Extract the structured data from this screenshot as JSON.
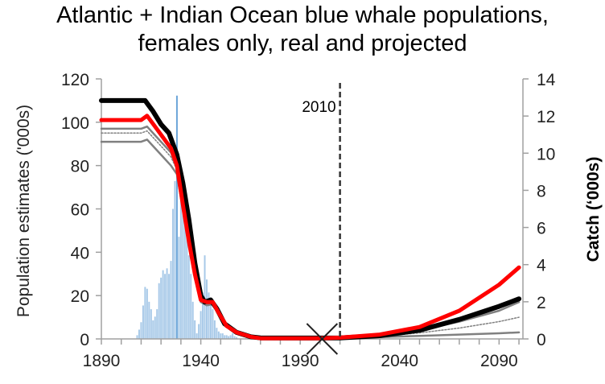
{
  "chart_data": {
    "type": "line",
    "title_lines": [
      "Atlantic + Indian Ocean blue whale populations,",
      "females only, real and projected"
    ],
    "ylabel": "Population estimates ('000s)",
    "y2label": "Catch (‘000s)",
    "xlim": [
      1890,
      2102
    ],
    "ylim": [
      0,
      120
    ],
    "y2lim": [
      0,
      14
    ],
    "xticks": [
      1890,
      1940,
      1990,
      2040,
      2090
    ],
    "yticks": [
      0,
      20,
      40,
      60,
      80,
      100,
      120
    ],
    "y2ticks": [
      0,
      2,
      4,
      6,
      8,
      10,
      12,
      14
    ],
    "grid": false,
    "annotation": {
      "label": "2010",
      "x": 2010,
      "style": "dashed vertical line"
    },
    "marker_x": {
      "x": 2001,
      "y": 0,
      "symbol": "X"
    },
    "colors": {
      "black_series": "#000000",
      "red_series": "#ff0000",
      "gray_series": "#808080",
      "catch_bars": "#9dc3e6",
      "catch_bars_dark": "#5b9bd5"
    },
    "series": [
      {
        "color": "#808080",
        "style": "gray",
        "x": [
          1890,
          1910,
          1913,
          1917,
          1921,
          1925,
          1928,
          1931,
          1934,
          1937,
          1940,
          1943,
          1946,
          1949,
          1953,
          1958,
          1965,
          1970,
          2000,
          2010,
          2030,
          2050,
          2070,
          2090,
          2100
        ],
        "y": [
          97,
          97,
          98,
          94,
          90,
          86,
          79,
          62,
          45,
          30,
          18,
          16,
          16.5,
          12,
          6,
          3,
          1,
          0.4,
          0.3,
          0.5,
          1.5,
          4,
          8,
          13,
          17
        ]
      },
      {
        "color": "#808080",
        "style": "gray-dotted",
        "x": [
          1890,
          1910,
          1913,
          1917,
          1921,
          1925,
          1928,
          1931,
          1934,
          1937,
          1940,
          1943,
          1946,
          1949,
          1953,
          1958,
          1965,
          1970,
          2000,
          2010,
          2030,
          2050,
          2070,
          2090,
          2100
        ],
        "y": [
          95,
          95,
          96,
          92,
          88,
          84,
          78,
          61,
          44,
          29,
          18,
          16,
          16.5,
          12,
          6,
          3,
          1,
          0.4,
          0.3,
          0.4,
          1.2,
          2.8,
          5,
          8,
          10
        ]
      },
      {
        "color": "#808080",
        "style": "gray",
        "x": [
          1890,
          1910,
          1913,
          1917,
          1921,
          1925,
          1928,
          1931,
          1934,
          1937,
          1940,
          1943,
          1946,
          1949,
          1953,
          1958,
          1965,
          1970,
          2000,
          2010,
          2030,
          2050,
          2070,
          2090,
          2100
        ],
        "y": [
          91,
          91,
          92,
          88,
          84,
          80,
          76,
          60,
          43,
          28,
          17,
          15.5,
          16,
          11.5,
          6,
          3,
          1,
          0.4,
          0.3,
          0.3,
          0.8,
          1.4,
          2,
          2.6,
          3
        ]
      },
      {
        "color": "#000000",
        "style": "black",
        "x": [
          1890,
          1912,
          1916,
          1920,
          1924,
          1928,
          1931,
          1934,
          1937,
          1940,
          1942,
          1945,
          1948,
          1952,
          1958,
          1965,
          1970,
          2000,
          2010,
          2030,
          2050,
          2070,
          2090,
          2100
        ],
        "y": [
          110,
          110,
          105,
          99,
          95,
          85,
          72,
          55,
          35,
          20,
          17,
          18,
          14,
          7,
          3,
          1,
          0.5,
          0.4,
          0.5,
          1.5,
          4,
          9,
          15,
          18.5
        ]
      },
      {
        "color": "#ff0000",
        "style": "red",
        "x": [
          1890,
          1910,
          1913,
          1917,
          1921,
          1925,
          1928,
          1931,
          1934,
          1937,
          1940,
          1943,
          1946,
          1949,
          1953,
          1958,
          1965,
          1970,
          2000,
          2010,
          2030,
          2050,
          2070,
          2090,
          2100
        ],
        "y": [
          101,
          101,
          103,
          98,
          93,
          88,
          80,
          62,
          45,
          30,
          18,
          17,
          17,
          12,
          6,
          3,
          1,
          0.3,
          0.3,
          0.6,
          2,
          5.5,
          13,
          25,
          33
        ]
      }
    ],
    "catch": {
      "axis": "right",
      "x": [
        1908,
        1909,
        1910,
        1911,
        1912,
        1913,
        1914,
        1915,
        1916,
        1917,
        1918,
        1919,
        1920,
        1921,
        1922,
        1923,
        1924,
        1925,
        1926,
        1927,
        1928,
        1929,
        1930,
        1931,
        1932,
        1933,
        1934,
        1935,
        1936,
        1937,
        1938,
        1939,
        1940,
        1941,
        1942,
        1943,
        1944,
        1945,
        1946,
        1947,
        1948,
        1949,
        1950,
        1951,
        1952,
        1953,
        1954,
        1955,
        1956,
        1957,
        1958
      ],
      "y": [
        0.2,
        0.5,
        0.9,
        1.8,
        2.8,
        2.7,
        2.0,
        1.6,
        1.0,
        1.2,
        1.6,
        3.0,
        3.3,
        3.7,
        3.5,
        3.8,
        3.5,
        4.2,
        7.0,
        8.5,
        13.1,
        5.5,
        8.5,
        7.5,
        8.0,
        6.5,
        4.5,
        3.5,
        2.0,
        1.0,
        0.3,
        0.8,
        1.5,
        2.5,
        4.5,
        3.2,
        2.5,
        2.0,
        1.6,
        1.0,
        0.6,
        0.4,
        0.3,
        0.3,
        0.2,
        0.2,
        0.15,
        0.2,
        0.3,
        0.15,
        0.1
      ]
    }
  }
}
